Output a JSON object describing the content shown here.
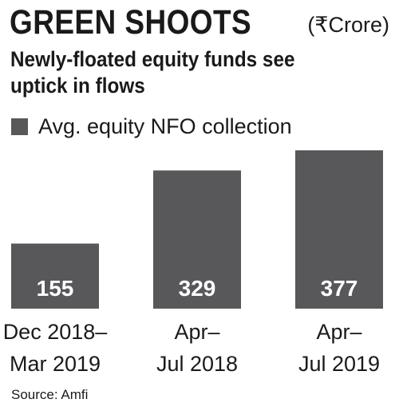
{
  "header": {
    "title": "GREEN SHOOTS",
    "unit": "(₹Crore)",
    "subtitle": "Newly-floated equity funds see uptick in flows"
  },
  "legend": {
    "label": "Avg. equity NFO collection",
    "color": "#58585a"
  },
  "chart_data": {
    "type": "bar",
    "title": "GREEN SHOOTS",
    "subtitle": "Newly-floated equity funds see uptick in flows",
    "unit": "(₹Crore)",
    "categories": [
      [
        "Dec 2018–",
        "Mar 2019"
      ],
      [
        "Apr–",
        "Jul 2018"
      ],
      [
        "Apr–",
        "Jul 2019"
      ]
    ],
    "series": [
      {
        "name": "Avg. equity NFO collection",
        "values": [
          155,
          329,
          377
        ]
      }
    ],
    "data_labels": [
      "155",
      "329",
      "377"
    ],
    "ylim": [
      0,
      377
    ],
    "grid": false,
    "legend_position": "top-left",
    "bar_color": "#58585a",
    "label_color": "#ffffff"
  },
  "footer": {
    "source": "Source: Amfi"
  }
}
